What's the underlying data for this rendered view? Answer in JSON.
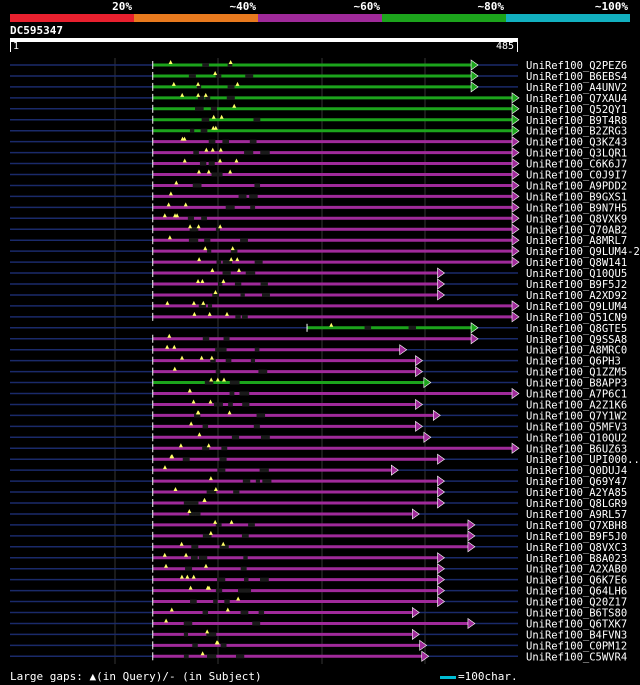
{
  "legend": {
    "segments": [
      {
        "label": "",
        "color": "#e8202e"
      },
      {
        "label": "20%",
        "color": "#e87a1e"
      },
      {
        "label": "~40%",
        "color": "#a02a9a"
      },
      {
        "label": "~60%",
        "color": "#1ca41c"
      },
      {
        "label": "~80%",
        "color": "#12b0c0"
      }
    ],
    "labels": [
      "20%",
      "~40%",
      "~60%",
      "~80%",
      "~100%"
    ]
  },
  "query": {
    "id": "DC595347",
    "start": "1",
    "end": "485",
    "length": 485
  },
  "footer": {
    "gaps_text": "Large gaps: ▲(in Query)/- (in Subject)",
    "scale_text": "=100char."
  },
  "colors": {
    "green": "#1ca41c",
    "purple": "#a02a9a",
    "navy": "#1a2a6a",
    "gap": "#ffff66"
  },
  "chart_data": {
    "type": "bar",
    "x_range": [
      1,
      485
    ],
    "hits": [
      {
        "name": "UniRef100_Q2PEZ6",
        "start": 137,
        "end": 446,
        "color": "green"
      },
      {
        "name": "UniRef100_B6EBS4",
        "start": 137,
        "end": 446,
        "color": "green"
      },
      {
        "name": "UniRef100_A4UNV2",
        "start": 137,
        "end": 446,
        "color": "green"
      },
      {
        "name": "UniRef100_Q7XAU4",
        "start": 137,
        "end": 485,
        "color": "green"
      },
      {
        "name": "UniRef100_Q52QY1",
        "start": 137,
        "end": 485,
        "color": "green"
      },
      {
        "name": "UniRef100_B9T4R8",
        "start": 137,
        "end": 485,
        "color": "green"
      },
      {
        "name": "UniRef100_B2ZRG3",
        "start": 137,
        "end": 485,
        "color": "green"
      },
      {
        "name": "UniRef100_Q3KZ43",
        "start": 137,
        "end": 485,
        "color": "purple"
      },
      {
        "name": "UniRef100_Q3LQR1",
        "start": 137,
        "end": 485,
        "color": "purple"
      },
      {
        "name": "UniRef100_C6K6J7",
        "start": 137,
        "end": 485,
        "color": "purple"
      },
      {
        "name": "UniRef100_C0J9I7",
        "start": 137,
        "end": 485,
        "color": "purple"
      },
      {
        "name": "UniRef100_A9PDD2",
        "start": 137,
        "end": 485,
        "color": "purple"
      },
      {
        "name": "UniRef100_B9GXS1",
        "start": 137,
        "end": 485,
        "color": "purple"
      },
      {
        "name": "UniRef100_B9N7H5",
        "start": 137,
        "end": 485,
        "color": "purple"
      },
      {
        "name": "UniRef100_Q8VXK9",
        "start": 137,
        "end": 485,
        "color": "purple"
      },
      {
        "name": "UniRef100_Q70AB2",
        "start": 137,
        "end": 485,
        "color": "purple"
      },
      {
        "name": "UniRef100_A8MRL7",
        "start": 137,
        "end": 485,
        "color": "purple"
      },
      {
        "name": "UniRef100_Q9LUM4-2",
        "start": 137,
        "end": 485,
        "color": "purple"
      },
      {
        "name": "UniRef100_Q8W141",
        "start": 137,
        "end": 485,
        "color": "purple"
      },
      {
        "name": "UniRef100_Q10QU5",
        "start": 137,
        "end": 414,
        "color": "purple"
      },
      {
        "name": "UniRef100_B9F5J2",
        "start": 137,
        "end": 414,
        "color": "purple"
      },
      {
        "name": "UniRef100_A2XD92",
        "start": 137,
        "end": 414,
        "color": "purple"
      },
      {
        "name": "UniRef100_Q9LUM4",
        "start": 137,
        "end": 485,
        "color": "purple"
      },
      {
        "name": "UniRef100_Q51CN9",
        "start": 137,
        "end": 485,
        "color": "purple"
      },
      {
        "name": "UniRef100_Q8GTE5",
        "start": 284,
        "end": 446,
        "color": "green"
      },
      {
        "name": "UniRef100_Q9SSA8",
        "start": 137,
        "end": 446,
        "color": "purple"
      },
      {
        "name": "UniRef100_A8MRC0",
        "start": 137,
        "end": 378,
        "color": "purple"
      },
      {
        "name": "UniRef100_Q6PH3",
        "start": 137,
        "end": 393,
        "color": "purple"
      },
      {
        "name": "UniRef100_Q1ZZM5",
        "start": 137,
        "end": 393,
        "color": "purple"
      },
      {
        "name": "UniRef100_B8APP3",
        "start": 137,
        "end": 401,
        "color": "green"
      },
      {
        "name": "UniRef100_A7P6C1",
        "start": 137,
        "end": 485,
        "color": "purple"
      },
      {
        "name": "UniRef100_A2Z1K6",
        "start": 137,
        "end": 393,
        "color": "purple"
      },
      {
        "name": "UniRef100_Q7Y1W2",
        "start": 137,
        "end": 410,
        "color": "purple"
      },
      {
        "name": "UniRef100_Q5MFV3",
        "start": 137,
        "end": 393,
        "color": "purple"
      },
      {
        "name": "UniRef100_Q10QU2",
        "start": 137,
        "end": 401,
        "color": "purple"
      },
      {
        "name": "UniRef100_B6UZ63",
        "start": 137,
        "end": 485,
        "color": "purple"
      },
      {
        "name": "UniRef100_UPI000...",
        "start": 137,
        "end": 414,
        "color": "purple"
      },
      {
        "name": "UniRef100_Q0DUJ4",
        "start": 137,
        "end": 370,
        "color": "purple"
      },
      {
        "name": "UniRef100_Q69Y47",
        "start": 137,
        "end": 414,
        "color": "purple"
      },
      {
        "name": "UniRef100_A2YA85",
        "start": 137,
        "end": 414,
        "color": "purple"
      },
      {
        "name": "UniRef100_Q8LGR9",
        "start": 137,
        "end": 414,
        "color": "purple"
      },
      {
        "name": "UniRef100_A9RL57",
        "start": 137,
        "end": 390,
        "color": "purple"
      },
      {
        "name": "UniRef100_Q7XBH8",
        "start": 137,
        "end": 443,
        "color": "purple"
      },
      {
        "name": "UniRef100_B9F5J0",
        "start": 137,
        "end": 443,
        "color": "purple"
      },
      {
        "name": "UniRef100_Q8VXC3",
        "start": 137,
        "end": 443,
        "color": "purple"
      },
      {
        "name": "UniRef100_B8A023",
        "start": 137,
        "end": 414,
        "color": "purple"
      },
      {
        "name": "UniRef100_A2XAB0",
        "start": 137,
        "end": 414,
        "color": "purple"
      },
      {
        "name": "UniRef100_Q6K7E6",
        "start": 137,
        "end": 414,
        "color": "purple"
      },
      {
        "name": "UniRef100_Q64LH6",
        "start": 137,
        "end": 414,
        "color": "purple"
      },
      {
        "name": "UniRef100_Q20Z17",
        "start": 137,
        "end": 414,
        "color": "purple"
      },
      {
        "name": "UniRef100_B6TS80",
        "start": 137,
        "end": 390,
        "color": "purple"
      },
      {
        "name": "UniRef100_Q6TXK7",
        "start": 137,
        "end": 443,
        "color": "purple"
      },
      {
        "name": "UniRef100_B4FVN3",
        "start": 137,
        "end": 390,
        "color": "purple"
      },
      {
        "name": "UniRef100_C0PM12",
        "start": 137,
        "end": 397,
        "color": "purple"
      },
      {
        "name": "UniRef100_C5WVR4",
        "start": 137,
        "end": 399,
        "color": "purple"
      }
    ]
  }
}
